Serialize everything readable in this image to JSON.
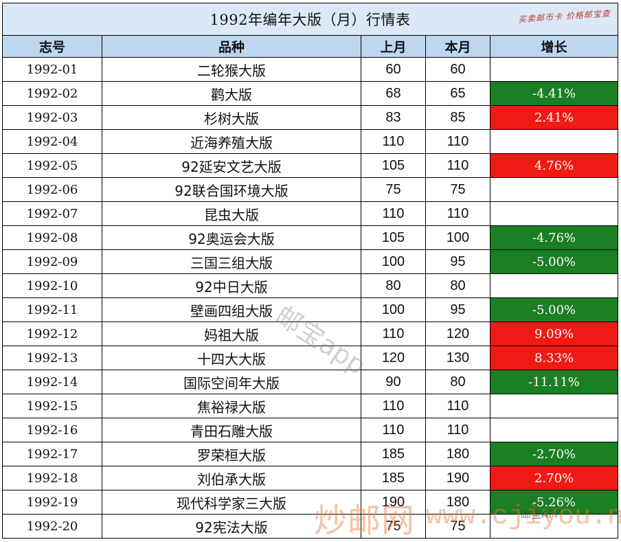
{
  "table": {
    "title": "1992年编年大版（月）行情表",
    "stamp": "买卖邮币卡 价格邮宝查",
    "headers": {
      "id": "志号",
      "name": "品种",
      "last_month": "上月",
      "this_month": "本月",
      "growth": "增长"
    },
    "rows": [
      {
        "id": "1992-01",
        "name": "二轮猴大版",
        "last": "60",
        "current": "60",
        "growth": "",
        "trend": "none"
      },
      {
        "id": "1992-02",
        "name": "鹳大版",
        "last": "68",
        "current": "65",
        "growth": "-4.41%",
        "trend": "down"
      },
      {
        "id": "1992-03",
        "name": "杉树大版",
        "last": "83",
        "current": "85",
        "growth": "2.41%",
        "trend": "up"
      },
      {
        "id": "1992-04",
        "name": "近海养殖大版",
        "last": "110",
        "current": "110",
        "growth": "",
        "trend": "none"
      },
      {
        "id": "1992-05",
        "name": "92延安文艺大版",
        "last": "105",
        "current": "110",
        "growth": "4.76%",
        "trend": "up"
      },
      {
        "id": "1992-06",
        "name": "92联合国环境大版",
        "last": "75",
        "current": "75",
        "growth": "",
        "trend": "none"
      },
      {
        "id": "1992-07",
        "name": "昆虫大版",
        "last": "110",
        "current": "110",
        "growth": "",
        "trend": "none"
      },
      {
        "id": "1992-08",
        "name": "92奥运会大版",
        "last": "105",
        "current": "100",
        "growth": "-4.76%",
        "trend": "down"
      },
      {
        "id": "1992-09",
        "name": "三国三组大版",
        "last": "100",
        "current": "95",
        "growth": "-5.00%",
        "trend": "down"
      },
      {
        "id": "1992-10",
        "name": "92中日大版",
        "last": "80",
        "current": "80",
        "growth": "",
        "trend": "none"
      },
      {
        "id": "1992-11",
        "name": "壁画四组大版",
        "last": "100",
        "current": "95",
        "growth": "-5.00%",
        "trend": "down"
      },
      {
        "id": "1992-12",
        "name": "妈祖大版",
        "last": "110",
        "current": "120",
        "growth": "9.09%",
        "trend": "up"
      },
      {
        "id": "1992-13",
        "name": "十四大大版",
        "last": "120",
        "current": "130",
        "growth": "8.33%",
        "trend": "up"
      },
      {
        "id": "1992-14",
        "name": "国际空间年大版",
        "last": "90",
        "current": "80",
        "growth": "-11.11%",
        "trend": "down"
      },
      {
        "id": "1992-15",
        "name": "焦裕禄大版",
        "last": "110",
        "current": "110",
        "growth": "",
        "trend": "none"
      },
      {
        "id": "1992-16",
        "name": "青田石雕大版",
        "last": "110",
        "current": "110",
        "growth": "",
        "trend": "none"
      },
      {
        "id": "1992-17",
        "name": "罗荣桓大版",
        "last": "185",
        "current": "180",
        "growth": "-2.70%",
        "trend": "down"
      },
      {
        "id": "1992-18",
        "name": "刘伯承大版",
        "last": "185",
        "current": "190",
        "growth": "2.70%",
        "trend": "up"
      },
      {
        "id": "1992-19",
        "name": "现代科学家三大版",
        "last": "190",
        "current": "180",
        "growth": "-5.26%",
        "trend": "down"
      },
      {
        "id": "1992-20",
        "name": "92宪法大版",
        "last": "75",
        "current": "75",
        "growth": "",
        "trend": "none"
      }
    ]
  },
  "watermarks": {
    "center": "邮宝app",
    "site_cn": "炒邮网",
    "site_url": "www.cjiyou.net",
    "wechat": "邮宝APP"
  },
  "colors": {
    "title_bg": "#dbe9f6",
    "header_bg": "#bdd7ee",
    "down": "#1b7f24",
    "up": "#f01a14"
  }
}
